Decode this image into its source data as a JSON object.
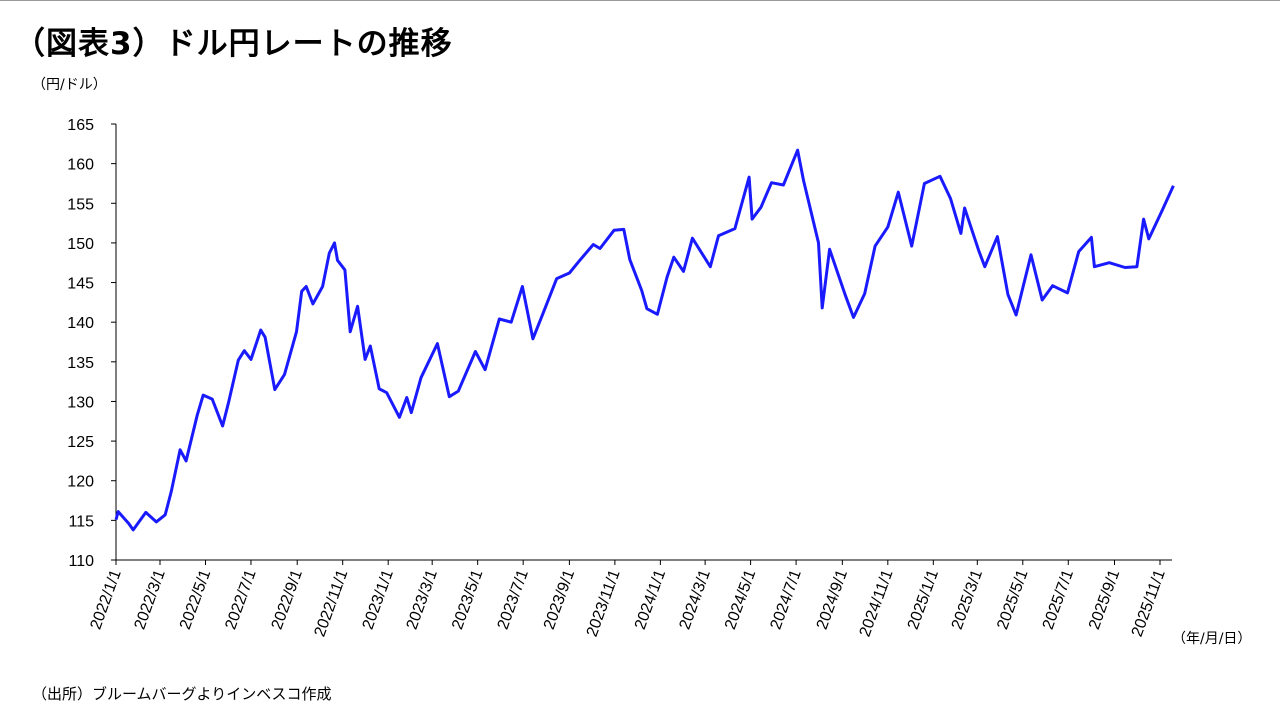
{
  "title": "（図表3）ドル円レートの推移",
  "source": "（出所）ブルームバーグよりインベスコ作成",
  "chart_data": {
    "type": "line",
    "title": "（図表3）ドル円レートの推移",
    "ylabel": "（円/ドル）",
    "xlabel": "（年/月/日）",
    "ylim": [
      110,
      165
    ],
    "yticks": [
      "110",
      "115",
      "120",
      "125",
      "130",
      "135",
      "140",
      "145",
      "150",
      "155",
      "160",
      "165"
    ],
    "xlim": [
      "2022-01-01",
      "2025-11-19"
    ],
    "xticks": [
      {
        "date": "2022-01-01",
        "label": "2022/1/1"
      },
      {
        "date": "2022-03-01",
        "label": "2022/3/1"
      },
      {
        "date": "2022-05-01",
        "label": "2022/5/1"
      },
      {
        "date": "2022-07-01",
        "label": "2022/7/1"
      },
      {
        "date": "2022-09-01",
        "label": "2022/9/1"
      },
      {
        "date": "2022-11-01",
        "label": "2022/11/1"
      },
      {
        "date": "2023-01-01",
        "label": "2023/1/1"
      },
      {
        "date": "2023-03-01",
        "label": "2023/3/1"
      },
      {
        "date": "2023-05-01",
        "label": "2023/5/1"
      },
      {
        "date": "2023-07-01",
        "label": "2023/7/1"
      },
      {
        "date": "2023-09-01",
        "label": "2023/9/1"
      },
      {
        "date": "2023-11-01",
        "label": "2023/11/1"
      },
      {
        "date": "2024-01-01",
        "label": "2024/1/1"
      },
      {
        "date": "2024-03-01",
        "label": "2024/3/1"
      },
      {
        "date": "2024-05-01",
        "label": "2024/5/1"
      },
      {
        "date": "2024-07-01",
        "label": "2024/7/1"
      },
      {
        "date": "2024-09-01",
        "label": "2024/9/1"
      },
      {
        "date": "2024-11-01",
        "label": "2024/11/1"
      },
      {
        "date": "2025-01-01",
        "label": "2025/1/1"
      },
      {
        "date": "2025-03-01",
        "label": "2025/3/1"
      },
      {
        "date": "2025-05-01",
        "label": "2025/5/1"
      },
      {
        "date": "2025-07-01",
        "label": "2025/7/1"
      },
      {
        "date": "2025-09-01",
        "label": "2025/9/1"
      },
      {
        "date": "2025-11-01",
        "label": "2025/11/1"
      }
    ],
    "grid": false,
    "legend": "none",
    "line_color": "#1a1aff",
    "series": [
      {
        "points": [
          [
            "2022-01-01",
            115.1
          ],
          [
            "2022-01-04",
            116.1
          ],
          [
            "2022-01-18",
            114.6
          ],
          [
            "2022-01-24",
            113.8
          ],
          [
            "2022-02-10",
            116.0
          ],
          [
            "2022-02-24",
            114.8
          ],
          [
            "2022-03-08",
            115.7
          ],
          [
            "2022-03-16",
            118.6
          ],
          [
            "2022-03-28",
            123.9
          ],
          [
            "2022-04-05",
            122.5
          ],
          [
            "2022-04-20",
            128.3
          ],
          [
            "2022-04-28",
            130.8
          ],
          [
            "2022-05-10",
            130.3
          ],
          [
            "2022-05-24",
            126.9
          ],
          [
            "2022-06-01",
            129.9
          ],
          [
            "2022-06-14",
            135.2
          ],
          [
            "2022-06-22",
            136.4
          ],
          [
            "2022-07-01",
            135.3
          ],
          [
            "2022-07-14",
            139.0
          ],
          [
            "2022-07-20",
            138.1
          ],
          [
            "2022-08-02",
            131.5
          ],
          [
            "2022-08-15",
            133.4
          ],
          [
            "2022-08-31",
            138.8
          ],
          [
            "2022-09-07",
            143.9
          ],
          [
            "2022-09-13",
            144.5
          ],
          [
            "2022-09-22",
            142.3
          ],
          [
            "2022-10-05",
            144.5
          ],
          [
            "2022-10-14",
            148.7
          ],
          [
            "2022-10-21",
            150.0
          ],
          [
            "2022-10-25",
            147.8
          ],
          [
            "2022-11-04",
            146.6
          ],
          [
            "2022-11-11",
            138.8
          ],
          [
            "2022-11-21",
            142.0
          ],
          [
            "2022-12-01",
            135.3
          ],
          [
            "2022-12-08",
            137.0
          ],
          [
            "2022-12-20",
            131.6
          ],
          [
            "2022-12-30",
            131.1
          ],
          [
            "2023-01-16",
            128.0
          ],
          [
            "2023-01-26",
            130.5
          ],
          [
            "2023-02-01",
            128.6
          ],
          [
            "2023-02-14",
            133.0
          ],
          [
            "2023-03-08",
            137.3
          ],
          [
            "2023-03-24",
            130.6
          ],
          [
            "2023-04-05",
            131.3
          ],
          [
            "2023-04-28",
            136.3
          ],
          [
            "2023-05-11",
            134.0
          ],
          [
            "2023-05-30",
            140.4
          ],
          [
            "2023-06-15",
            140.0
          ],
          [
            "2023-06-30",
            144.5
          ],
          [
            "2023-07-14",
            137.9
          ],
          [
            "2023-07-28",
            141.2
          ],
          [
            "2023-08-15",
            145.5
          ],
          [
            "2023-09-01",
            146.2
          ],
          [
            "2023-09-15",
            147.8
          ],
          [
            "2023-10-03",
            149.8
          ],
          [
            "2023-10-12",
            149.3
          ],
          [
            "2023-10-31",
            151.6
          ],
          [
            "2023-11-13",
            151.7
          ],
          [
            "2023-11-21",
            147.9
          ],
          [
            "2023-12-07",
            144.0
          ],
          [
            "2023-12-14",
            141.7
          ],
          [
            "2023-12-28",
            141.0
          ],
          [
            "2024-01-10",
            145.7
          ],
          [
            "2024-01-19",
            148.2
          ],
          [
            "2024-02-01",
            146.4
          ],
          [
            "2024-02-13",
            150.6
          ],
          [
            "2024-03-08",
            147.0
          ],
          [
            "2024-03-19",
            150.9
          ],
          [
            "2024-04-10",
            151.8
          ],
          [
            "2024-04-29",
            158.3
          ],
          [
            "2024-05-03",
            153.0
          ],
          [
            "2024-05-15",
            154.5
          ],
          [
            "2024-05-29",
            157.6
          ],
          [
            "2024-06-14",
            157.3
          ],
          [
            "2024-07-03",
            161.7
          ],
          [
            "2024-07-11",
            157.9
          ],
          [
            "2024-07-31",
            150.0
          ],
          [
            "2024-08-05",
            141.8
          ],
          [
            "2024-08-15",
            149.2
          ],
          [
            "2024-09-05",
            143.4
          ],
          [
            "2024-09-16",
            140.6
          ],
          [
            "2024-10-01",
            143.6
          ],
          [
            "2024-10-15",
            149.6
          ],
          [
            "2024-11-01",
            152.0
          ],
          [
            "2024-11-15",
            156.4
          ],
          [
            "2024-12-03",
            149.6
          ],
          [
            "2024-12-20",
            157.5
          ],
          [
            "2025-01-10",
            158.4
          ],
          [
            "2025-01-24",
            155.6
          ],
          [
            "2025-02-07",
            151.2
          ],
          [
            "2025-02-12",
            154.4
          ],
          [
            "2025-03-03",
            149.0
          ],
          [
            "2025-03-11",
            147.0
          ],
          [
            "2025-03-28",
            150.8
          ],
          [
            "2025-04-11",
            143.5
          ],
          [
            "2025-04-22",
            140.9
          ],
          [
            "2025-05-12",
            148.5
          ],
          [
            "2025-05-27",
            142.8
          ],
          [
            "2025-06-10",
            144.6
          ],
          [
            "2025-06-30",
            143.7
          ],
          [
            "2025-07-15",
            148.9
          ],
          [
            "2025-08-01",
            150.7
          ],
          [
            "2025-08-05",
            147.0
          ],
          [
            "2025-08-25",
            147.5
          ],
          [
            "2025-09-15",
            146.9
          ],
          [
            "2025-10-01",
            147.0
          ],
          [
            "2025-10-10",
            153.0
          ],
          [
            "2025-10-17",
            150.5
          ],
          [
            "2025-11-04",
            154.1
          ],
          [
            "2025-11-19",
            157.2
          ]
        ]
      }
    ]
  }
}
